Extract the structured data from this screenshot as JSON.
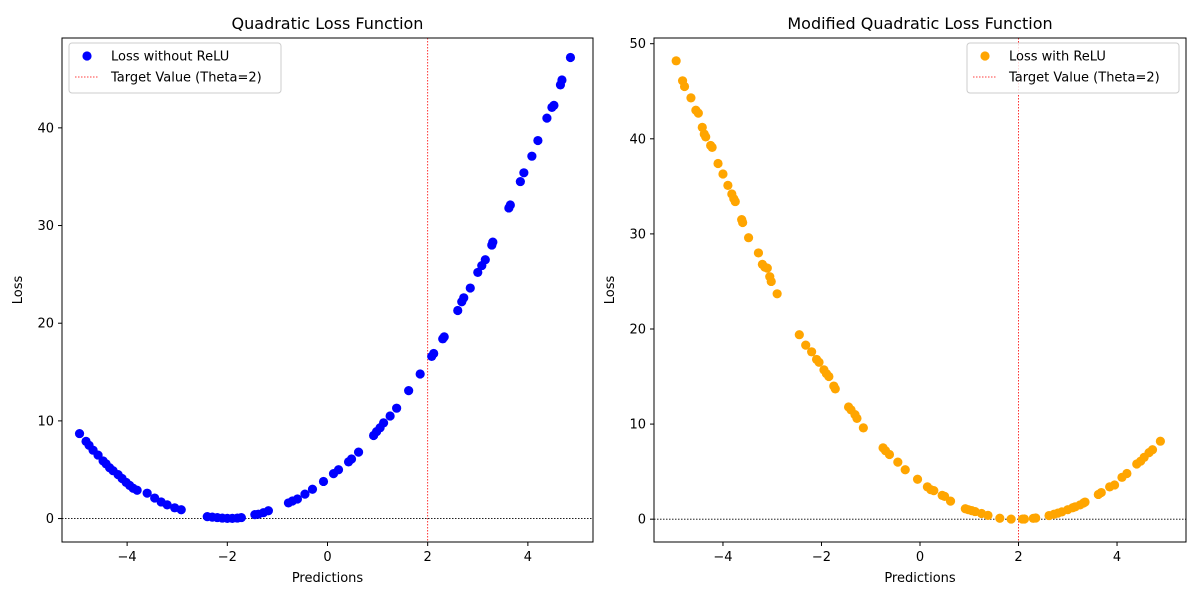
{
  "chart_data": [
    {
      "type": "scatter",
      "title": "Quadratic Loss Function",
      "xlabel": "Predictions",
      "ylabel": "Loss",
      "xlim": [
        -5.3,
        5.3
      ],
      "ylim": [
        -2.4,
        49.2
      ],
      "xticks": [
        -4,
        -2,
        0,
        2,
        4
      ],
      "yticks": [
        0,
        10,
        20,
        30,
        40
      ],
      "legend_position": "upper left",
      "series": [
        {
          "name": "Loss without ReLU",
          "color": "#0000ff",
          "x": [
            -4.95,
            -4.82,
            -4.76,
            -4.68,
            -4.58,
            -4.48,
            -4.42,
            -4.35,
            -4.28,
            -4.18,
            -4.1,
            -4.02,
            -3.95,
            -3.88,
            -3.8,
            -3.6,
            -3.45,
            -3.32,
            -3.2,
            -3.05,
            -2.92,
            -2.4,
            -2.3,
            -2.2,
            -2.1,
            -2.0,
            -1.9,
            -1.8,
            -1.72,
            -1.45,
            -1.38,
            -1.28,
            -1.18,
            -0.78,
            -0.7,
            -0.6,
            -0.45,
            -0.3,
            -0.08,
            0.12,
            0.22,
            0.42,
            0.48,
            0.62,
            0.92,
            0.98,
            1.05,
            1.12,
            1.25,
            1.38,
            1.62,
            1.85,
            2.08,
            2.12,
            2.3,
            2.33,
            2.6,
            2.68,
            2.72,
            2.85,
            3.0,
            3.08,
            3.15,
            3.28,
            3.3,
            3.62,
            3.65,
            3.85,
            3.92,
            4.08,
            4.2,
            4.38,
            4.48,
            4.52,
            4.65,
            4.68,
            4.85
          ],
          "y": [
            8.7,
            7.9,
            7.5,
            7.0,
            6.5,
            5.9,
            5.6,
            5.2,
            4.9,
            4.5,
            4.1,
            3.7,
            3.4,
            3.1,
            2.9,
            2.6,
            2.1,
            1.7,
            1.4,
            1.1,
            0.9,
            0.2,
            0.15,
            0.1,
            0.05,
            0.02,
            0.02,
            0.05,
            0.1,
            0.4,
            0.45,
            0.6,
            0.8,
            1.6,
            1.8,
            2.0,
            2.5,
            3.0,
            3.8,
            4.6,
            5.0,
            5.8,
            6.1,
            6.8,
            8.5,
            8.9,
            9.3,
            9.8,
            10.5,
            11.3,
            13.1,
            14.8,
            16.6,
            16.9,
            18.4,
            18.6,
            21.3,
            22.2,
            22.6,
            23.6,
            25.2,
            25.9,
            26.5,
            28.0,
            28.3,
            31.8,
            32.1,
            34.5,
            35.4,
            37.1,
            38.7,
            41.0,
            42.1,
            42.3,
            44.4,
            44.9,
            47.2
          ]
        }
      ],
      "reference_lines": [
        {
          "name": "Target Value (Theta=2)",
          "orientation": "vertical",
          "value": 2,
          "color": "#ff0000",
          "style": "dotted"
        },
        {
          "orientation": "horizontal",
          "value": 0,
          "color": "#000000",
          "style": "dotted"
        }
      ],
      "grid": false
    },
    {
      "type": "scatter",
      "title": "Modified Quadratic Loss Function",
      "xlabel": "Predictions",
      "ylabel": "Loss",
      "xlim": [
        -5.4,
        5.4
      ],
      "ylim": [
        -2.4,
        50.6
      ],
      "xticks": [
        -4,
        -2,
        0,
        2,
        4
      ],
      "yticks": [
        0,
        10,
        20,
        30,
        40,
        50
      ],
      "legend_position": "upper right",
      "series": [
        {
          "name": "Loss with ReLU",
          "color": "#ffa500",
          "x": [
            -4.95,
            -4.82,
            -4.78,
            -4.65,
            -4.55,
            -4.5,
            -4.42,
            -4.38,
            -4.35,
            -4.25,
            -4.22,
            -4.1,
            -4.0,
            -3.9,
            -3.82,
            -3.78,
            -3.75,
            -3.62,
            -3.6,
            -3.48,
            -3.28,
            -3.2,
            -3.15,
            -3.1,
            -3.05,
            -3.02,
            -2.9,
            -2.45,
            -2.32,
            -2.2,
            -2.1,
            -2.05,
            -1.95,
            -1.9,
            -1.85,
            -1.75,
            -1.72,
            -1.45,
            -1.4,
            -1.32,
            -1.28,
            -1.15,
            -0.75,
            -0.7,
            -0.62,
            -0.45,
            -0.3,
            -0.05,
            0.15,
            0.22,
            0.28,
            0.45,
            0.5,
            0.62,
            0.92,
            0.98,
            1.05,
            1.12,
            1.25,
            1.38,
            1.62,
            1.85,
            2.08,
            2.12,
            2.3,
            2.35,
            2.62,
            2.72,
            2.8,
            2.88,
            3.0,
            3.1,
            3.15,
            3.25,
            3.32,
            3.35,
            3.62,
            3.68,
            3.85,
            3.95,
            4.1,
            4.2,
            4.4,
            4.48,
            4.55,
            4.65,
            4.72,
            4.88
          ],
          "y": [
            48.2,
            46.1,
            45.5,
            44.3,
            43.0,
            42.7,
            41.2,
            40.5,
            40.2,
            39.3,
            39.1,
            37.4,
            36.3,
            35.1,
            34.2,
            33.7,
            33.4,
            31.5,
            31.2,
            29.6,
            28.0,
            26.8,
            26.5,
            26.4,
            25.5,
            25.0,
            23.7,
            19.4,
            18.3,
            17.6,
            16.8,
            16.5,
            15.7,
            15.3,
            15.0,
            14.0,
            13.7,
            11.8,
            11.5,
            11.0,
            10.6,
            9.6,
            7.5,
            7.2,
            6.8,
            6.0,
            5.2,
            4.2,
            3.4,
            3.1,
            3.0,
            2.5,
            2.4,
            1.9,
            1.1,
            1.0,
            0.9,
            0.8,
            0.6,
            0.4,
            0.1,
            0.01,
            0.01,
            0.02,
            0.09,
            0.12,
            0.38,
            0.52,
            0.64,
            0.77,
            1.0,
            1.2,
            1.3,
            1.5,
            1.7,
            1.8,
            2.6,
            2.8,
            3.4,
            3.6,
            4.4,
            4.8,
            5.8,
            6.1,
            6.5,
            7.0,
            7.3,
            8.2
          ]
        }
      ],
      "reference_lines": [
        {
          "name": "Target Value (Theta=2)",
          "orientation": "vertical",
          "value": 2,
          "color": "#ff0000",
          "style": "dotted"
        },
        {
          "orientation": "horizontal",
          "value": 0,
          "color": "#000000",
          "style": "dotted"
        }
      ],
      "grid": false
    }
  ]
}
